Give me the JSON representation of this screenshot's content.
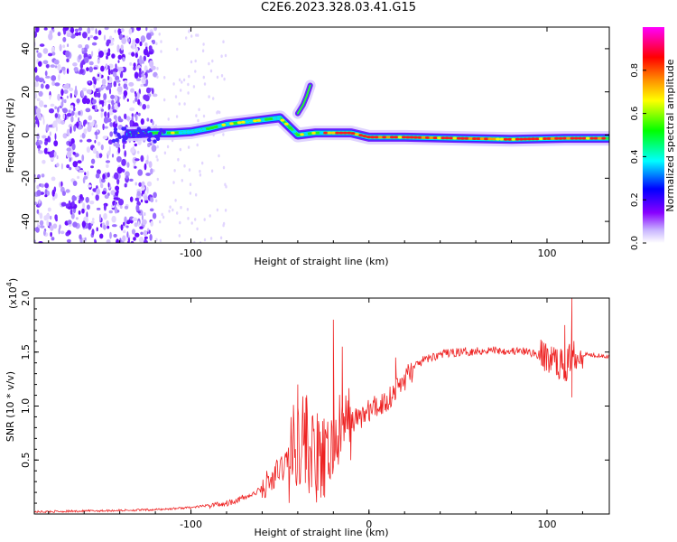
{
  "title": "C2E6.2023.328.03.41.G15",
  "chart_data": [
    {
      "type": "heatmap",
      "title": "C2E6.2023.328.03.41.G15",
      "xlabel": "Height of straight line (km)",
      "ylabel": "Frequency (Hz)",
      "xlim": [
        -188,
        135
      ],
      "ylim": [
        -50,
        50
      ],
      "x_ticks": [
        -100,
        100
      ],
      "y_ticks": [
        -40,
        -20,
        0,
        20,
        40
      ],
      "colorbar": {
        "label": "Normalized spectral amplitude",
        "range": [
          0,
          1
        ],
        "ticks": [
          "0.0",
          "0.2",
          "0.4",
          "0.6",
          "0.8"
        ],
        "colormap": [
          "#ffffff",
          "#c8b4ff",
          "#8800ff",
          "#0000ff",
          "#00ffff",
          "#00ff00",
          "#ffff00",
          "#ff8800",
          "#ff0000",
          "#ff00ff"
        ]
      },
      "signal_track": [
        {
          "x": -135,
          "y": 0.5
        },
        {
          "x": -120,
          "y": 1
        },
        {
          "x": -110,
          "y": 1
        },
        {
          "x": -100,
          "y": 1.5
        },
        {
          "x": -90,
          "y": 3
        },
        {
          "x": -80,
          "y": 5
        },
        {
          "x": -70,
          "y": 6
        },
        {
          "x": -60,
          "y": 7
        },
        {
          "x": -50,
          "y": 8
        },
        {
          "x": -45,
          "y": 4
        },
        {
          "x": -40,
          "y": 0
        },
        {
          "x": -30,
          "y": 1
        },
        {
          "x": -20,
          "y": 1
        },
        {
          "x": -10,
          "y": 1
        },
        {
          "x": 0,
          "y": -1
        },
        {
          "x": 20,
          "y": -1
        },
        {
          "x": 50,
          "y": -1.5
        },
        {
          "x": 80,
          "y": -2
        },
        {
          "x": 110,
          "y": -1.5
        },
        {
          "x": 135,
          "y": -1.5
        }
      ],
      "branch_track": [
        {
          "x": -40,
          "y": 10
        },
        {
          "x": -37,
          "y": 14
        },
        {
          "x": -35,
          "y": 18
        },
        {
          "x": -33,
          "y": 23
        }
      ]
    },
    {
      "type": "line",
      "xlabel": "Height of straight line (km)",
      "ylabel": "SNR (10 * v/v)",
      "y_multiplier": "(x10",
      "y_multiplier_exp": "4",
      "y_multiplier_close": ")",
      "xlim": [
        -188,
        135
      ],
      "ylim": [
        0,
        2
      ],
      "x_ticks": [
        "-100",
        "0",
        "100"
      ],
      "y_ticks": [
        "0.5",
        "1.0",
        "1.5",
        "2.0"
      ],
      "line_color": "#ee2222",
      "series": [
        {
          "values": [
            {
              "x": -188,
              "y": 0.02
            },
            {
              "x": -150,
              "y": 0.03
            },
            {
              "x": -120,
              "y": 0.04
            },
            {
              "x": -100,
              "y": 0.06
            },
            {
              "x": -80,
              "y": 0.1
            },
            {
              "x": -65,
              "y": 0.18
            },
            {
              "x": -55,
              "y": 0.3
            },
            {
              "x": -48,
              "y": 0.45
            },
            {
              "x": -42,
              "y": 0.6
            },
            {
              "x": -38,
              "y": 0.75
            },
            {
              "x": -35,
              "y": 0.65
            },
            {
              "x": -30,
              "y": 0.5
            },
            {
              "x": -25,
              "y": 0.45
            },
            {
              "x": -20,
              "y": 0.65
            },
            {
              "x": -15,
              "y": 0.8
            },
            {
              "x": -10,
              "y": 0.85
            },
            {
              "x": -5,
              "y": 0.9
            },
            {
              "x": 0,
              "y": 0.95
            },
            {
              "x": 5,
              "y": 1.0
            },
            {
              "x": 10,
              "y": 1.05
            },
            {
              "x": 15,
              "y": 1.15
            },
            {
              "x": 20,
              "y": 1.25
            },
            {
              "x": 25,
              "y": 1.35
            },
            {
              "x": 30,
              "y": 1.42
            },
            {
              "x": 40,
              "y": 1.48
            },
            {
              "x": 50,
              "y": 1.5
            },
            {
              "x": 60,
              "y": 1.51
            },
            {
              "x": 70,
              "y": 1.52
            },
            {
              "x": 80,
              "y": 1.51
            },
            {
              "x": 90,
              "y": 1.5
            },
            {
              "x": 100,
              "y": 1.45
            },
            {
              "x": 105,
              "y": 1.42
            },
            {
              "x": 110,
              "y": 1.35
            },
            {
              "x": 115,
              "y": 1.5
            },
            {
              "x": 120,
              "y": 1.48
            },
            {
              "x": 130,
              "y": 1.47
            },
            {
              "x": 135,
              "y": 1.46
            }
          ]
        }
      ],
      "spikes": [
        {
          "x": -40,
          "y": 1.2
        },
        {
          "x": -35,
          "y": 1.1
        },
        {
          "x": -20,
          "y": 1.8
        },
        {
          "x": -15,
          "y": 1.55
        },
        {
          "x": 15,
          "y": 1.45
        },
        {
          "x": 110,
          "y": 1.75
        },
        {
          "x": 114,
          "y": 2.0
        },
        {
          "x": 114,
          "y": 1.08
        }
      ]
    }
  ]
}
